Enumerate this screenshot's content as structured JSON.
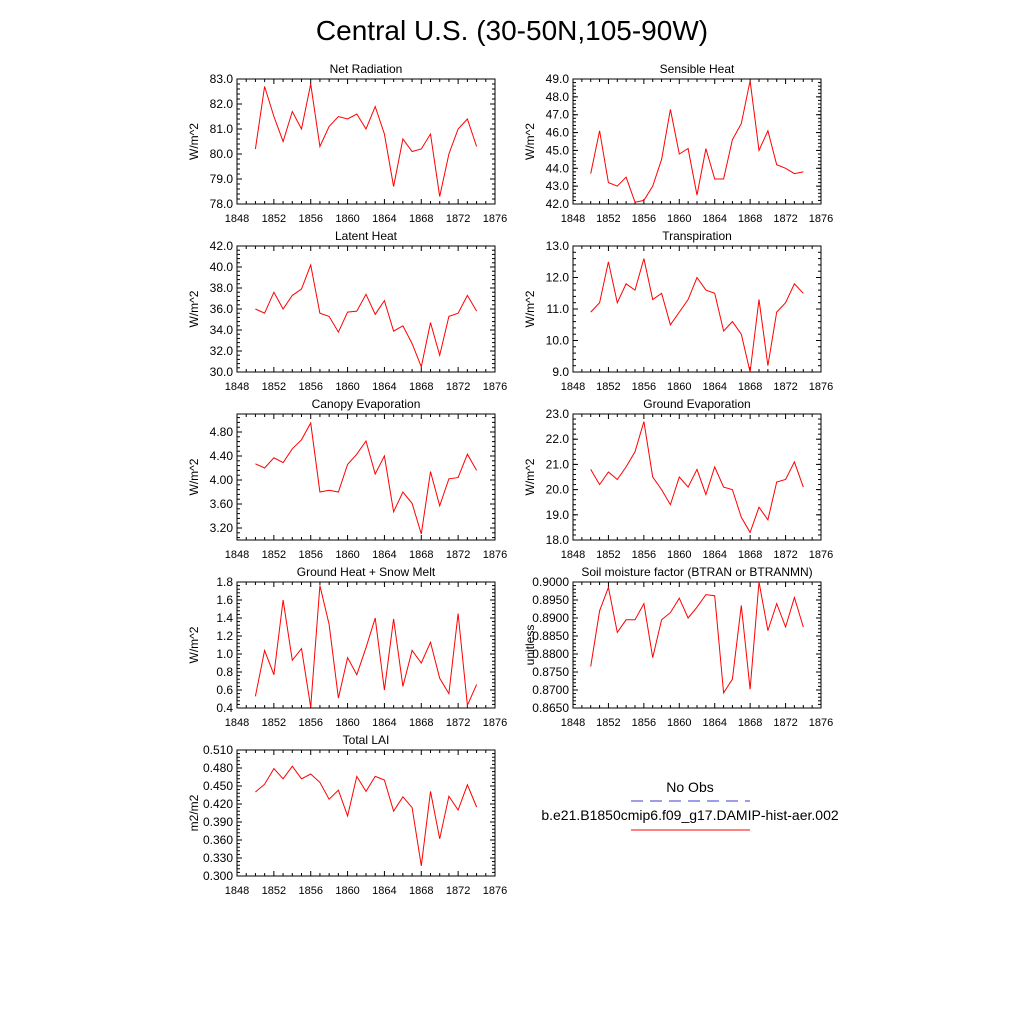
{
  "page_title": "Central U.S. (30-50N,105-90W)",
  "legend": {
    "obs_label": "No Obs",
    "obs_color": "#3b3bd6",
    "model_label": "b.e21.B1850cmip6.f09_g17.DAMIP-hist-aer.002",
    "model_color": "#ff0000"
  },
  "chart_data": [
    {
      "type": "line",
      "title": "Net Radiation",
      "ylabel": "W/m^2",
      "xlim": [
        1848,
        1876
      ],
      "ylim": [
        78,
        83
      ],
      "xticks": [
        "1848",
        "1852",
        "1856",
        "1860",
        "1864",
        "1868",
        "1872",
        "1876"
      ],
      "yticks": [
        "78.0",
        "79.0",
        "80.0",
        "81.0",
        "82.0",
        "83.0"
      ],
      "x": [
        1850,
        1851,
        1852,
        1853,
        1854,
        1855,
        1856,
        1857,
        1858,
        1859,
        1860,
        1861,
        1862,
        1863,
        1864,
        1865,
        1866,
        1867,
        1868,
        1869,
        1870,
        1871,
        1872,
        1873,
        1874
      ],
      "values": [
        80.2,
        82.7,
        81.5,
        80.5,
        81.7,
        81.0,
        82.8,
        80.3,
        81.1,
        81.5,
        81.4,
        81.6,
        81.0,
        81.9,
        80.8,
        78.7,
        80.6,
        80.1,
        80.2,
        80.8,
        78.3,
        80.0,
        81.0,
        81.4,
        80.3
      ]
    },
    {
      "type": "line",
      "title": "Sensible Heat",
      "ylabel": "W/m^2",
      "xlim": [
        1848,
        1876
      ],
      "ylim": [
        42,
        49
      ],
      "xticks": [
        "1848",
        "1852",
        "1856",
        "1860",
        "1864",
        "1868",
        "1872",
        "1876"
      ],
      "yticks": [
        "42.0",
        "43.0",
        "44.0",
        "45.0",
        "46.0",
        "47.0",
        "48.0",
        "49.0"
      ],
      "x": [
        1850,
        1851,
        1852,
        1853,
        1854,
        1855,
        1856,
        1857,
        1858,
        1859,
        1860,
        1861,
        1862,
        1863,
        1864,
        1865,
        1866,
        1867,
        1868,
        1869,
        1870,
        1871,
        1872,
        1873,
        1874
      ],
      "values": [
        43.7,
        46.1,
        43.2,
        43.0,
        43.5,
        42.1,
        42.2,
        43.0,
        44.5,
        47.3,
        44.8,
        45.1,
        42.5,
        45.1,
        43.4,
        43.4,
        45.6,
        46.5,
        48.9,
        45.0,
        46.1,
        44.2,
        44.0,
        43.7,
        43.8
      ]
    },
    {
      "type": "line",
      "title": "Latent Heat",
      "ylabel": "W/m^2",
      "xlim": [
        1848,
        1876
      ],
      "ylim": [
        30,
        42
      ],
      "xticks": [
        "1848",
        "1852",
        "1856",
        "1860",
        "1864",
        "1868",
        "1872",
        "1876"
      ],
      "yticks": [
        "30.0",
        "32.0",
        "34.0",
        "36.0",
        "38.0",
        "40.0",
        "42.0"
      ],
      "x": [
        1850,
        1851,
        1852,
        1853,
        1854,
        1855,
        1856,
        1857,
        1858,
        1859,
        1860,
        1861,
        1862,
        1863,
        1864,
        1865,
        1866,
        1867,
        1868,
        1869,
        1870,
        1871,
        1872,
        1873,
        1874
      ],
      "values": [
        36.0,
        35.6,
        37.6,
        36.0,
        37.3,
        37.9,
        40.2,
        35.6,
        35.3,
        33.8,
        35.7,
        35.8,
        37.4,
        35.5,
        36.8,
        33.9,
        34.4,
        32.7,
        30.5,
        34.7,
        31.6,
        35.3,
        35.6,
        37.3,
        35.8
      ]
    },
    {
      "type": "line",
      "title": "Transpiration",
      "ylabel": "W/m^2",
      "xlim": [
        1848,
        1876
      ],
      "ylim": [
        9,
        13
      ],
      "xticks": [
        "1848",
        "1852",
        "1856",
        "1860",
        "1864",
        "1868",
        "1872",
        "1876"
      ],
      "yticks": [
        "9.0",
        "10.0",
        "11.0",
        "12.0",
        "13.0"
      ],
      "x": [
        1850,
        1851,
        1852,
        1853,
        1854,
        1855,
        1856,
        1857,
        1858,
        1859,
        1860,
        1861,
        1862,
        1863,
        1864,
        1865,
        1866,
        1867,
        1868,
        1869,
        1870,
        1871,
        1872,
        1873,
        1874
      ],
      "values": [
        10.9,
        11.2,
        12.5,
        11.2,
        11.8,
        11.6,
        12.6,
        11.3,
        11.5,
        10.5,
        10.9,
        11.3,
        12.0,
        11.6,
        11.5,
        10.3,
        10.6,
        10.2,
        9.0,
        11.3,
        9.2,
        10.9,
        11.2,
        11.8,
        11.5
      ]
    },
    {
      "type": "line",
      "title": "Canopy Evaporation",
      "ylabel": "W/m^2",
      "xlim": [
        1848,
        1876
      ],
      "ylim": [
        3.0,
        5.1
      ],
      "xticks": [
        "1848",
        "1852",
        "1856",
        "1860",
        "1864",
        "1868",
        "1872",
        "1876"
      ],
      "yticks": [
        "3.20",
        "3.60",
        "4.00",
        "4.40",
        "4.80"
      ],
      "x": [
        1850,
        1851,
        1852,
        1853,
        1854,
        1855,
        1856,
        1857,
        1858,
        1859,
        1860,
        1861,
        1862,
        1863,
        1864,
        1865,
        1866,
        1867,
        1868,
        1869,
        1870,
        1871,
        1872,
        1873,
        1874
      ],
      "values": [
        4.27,
        4.2,
        4.37,
        4.29,
        4.52,
        4.67,
        4.95,
        3.8,
        3.83,
        3.8,
        4.26,
        4.43,
        4.65,
        4.1,
        4.4,
        3.47,
        3.8,
        3.61,
        3.1,
        4.14,
        3.57,
        4.02,
        4.04,
        4.43,
        4.16
      ]
    },
    {
      "type": "line",
      "title": "Ground Evaporation",
      "ylabel": "W/m^2",
      "xlim": [
        1848,
        1876
      ],
      "ylim": [
        18,
        23
      ],
      "xticks": [
        "1848",
        "1852",
        "1856",
        "1860",
        "1864",
        "1868",
        "1872",
        "1876"
      ],
      "yticks": [
        "18.0",
        "19.0",
        "20.0",
        "21.0",
        "22.0",
        "23.0"
      ],
      "x": [
        1850,
        1851,
        1852,
        1853,
        1854,
        1855,
        1856,
        1857,
        1858,
        1859,
        1860,
        1861,
        1862,
        1863,
        1864,
        1865,
        1866,
        1867,
        1868,
        1869,
        1870,
        1871,
        1872,
        1873,
        1874
      ],
      "values": [
        20.8,
        20.2,
        20.7,
        20.4,
        20.9,
        21.5,
        22.7,
        20.5,
        20.0,
        19.4,
        20.5,
        20.1,
        20.8,
        19.8,
        20.9,
        20.1,
        20.0,
        18.9,
        18.3,
        19.3,
        18.8,
        20.3,
        20.4,
        21.1,
        20.1
      ]
    },
    {
      "type": "line",
      "title": "Ground Heat + Snow Melt",
      "ylabel": "W/m^2",
      "xlim": [
        1848,
        1876
      ],
      "ylim": [
        0.4,
        1.8
      ],
      "xticks": [
        "1848",
        "1852",
        "1856",
        "1860",
        "1864",
        "1868",
        "1872",
        "1876"
      ],
      "yticks": [
        "0.4",
        "0.6",
        "0.8",
        "1.0",
        "1.2",
        "1.4",
        "1.6",
        "1.8"
      ],
      "x": [
        1850,
        1851,
        1852,
        1853,
        1854,
        1855,
        1856,
        1857,
        1858,
        1859,
        1860,
        1861,
        1862,
        1863,
        1864,
        1865,
        1866,
        1867,
        1868,
        1869,
        1870,
        1871,
        1872,
        1873,
        1874
      ],
      "values": [
        0.53,
        1.04,
        0.77,
        1.6,
        0.93,
        1.06,
        0.41,
        1.76,
        1.33,
        0.51,
        0.96,
        0.77,
        1.07,
        1.4,
        0.6,
        1.39,
        0.64,
        1.04,
        0.9,
        1.13,
        0.73,
        0.56,
        1.45,
        0.43,
        0.66
      ]
    },
    {
      "type": "line",
      "title": "Soil moisture factor (BTRAN or BTRANMN)",
      "ylabel": "unitless",
      "xlim": [
        1848,
        1876
      ],
      "ylim": [
        0.865,
        0.9
      ],
      "xticks": [
        "1848",
        "1852",
        "1856",
        "1860",
        "1864",
        "1868",
        "1872",
        "1876"
      ],
      "yticks": [
        "0.8650",
        "0.8700",
        "0.8750",
        "0.8800",
        "0.8850",
        "0.8900",
        "0.8950",
        "0.9000"
      ],
      "x": [
        1850,
        1851,
        1852,
        1853,
        1854,
        1855,
        1856,
        1857,
        1858,
        1859,
        1860,
        1861,
        1862,
        1863,
        1864,
        1865,
        1866,
        1867,
        1868,
        1869,
        1870,
        1871,
        1872,
        1873,
        1874
      ],
      "values": [
        0.8765,
        0.892,
        0.8985,
        0.886,
        0.8895,
        0.8895,
        0.894,
        0.879,
        0.8895,
        0.8915,
        0.8955,
        0.89,
        0.893,
        0.8965,
        0.8962,
        0.8692,
        0.873,
        0.8935,
        0.8702,
        0.9,
        0.8865,
        0.894,
        0.8875,
        0.8957,
        0.8875
      ]
    },
    {
      "type": "line",
      "title": "Total LAI",
      "ylabel": "m2/m2",
      "xlim": [
        1848,
        1876
      ],
      "ylim": [
        0.3,
        0.51
      ],
      "xticks": [
        "1848",
        "1852",
        "1856",
        "1860",
        "1864",
        "1868",
        "1872",
        "1876"
      ],
      "yticks": [
        "0.300",
        "0.330",
        "0.360",
        "0.390",
        "0.420",
        "0.450",
        "0.480",
        "0.510"
      ],
      "x": [
        1850,
        1851,
        1852,
        1853,
        1854,
        1855,
        1856,
        1857,
        1858,
        1859,
        1860,
        1861,
        1862,
        1863,
        1864,
        1865,
        1866,
        1867,
        1868,
        1869,
        1870,
        1871,
        1872,
        1873,
        1874
      ],
      "values": [
        0.44,
        0.453,
        0.479,
        0.462,
        0.483,
        0.462,
        0.47,
        0.456,
        0.428,
        0.443,
        0.4,
        0.466,
        0.441,
        0.466,
        0.46,
        0.408,
        0.432,
        0.414,
        0.317,
        0.441,
        0.362,
        0.433,
        0.41,
        0.452,
        0.415
      ]
    }
  ]
}
